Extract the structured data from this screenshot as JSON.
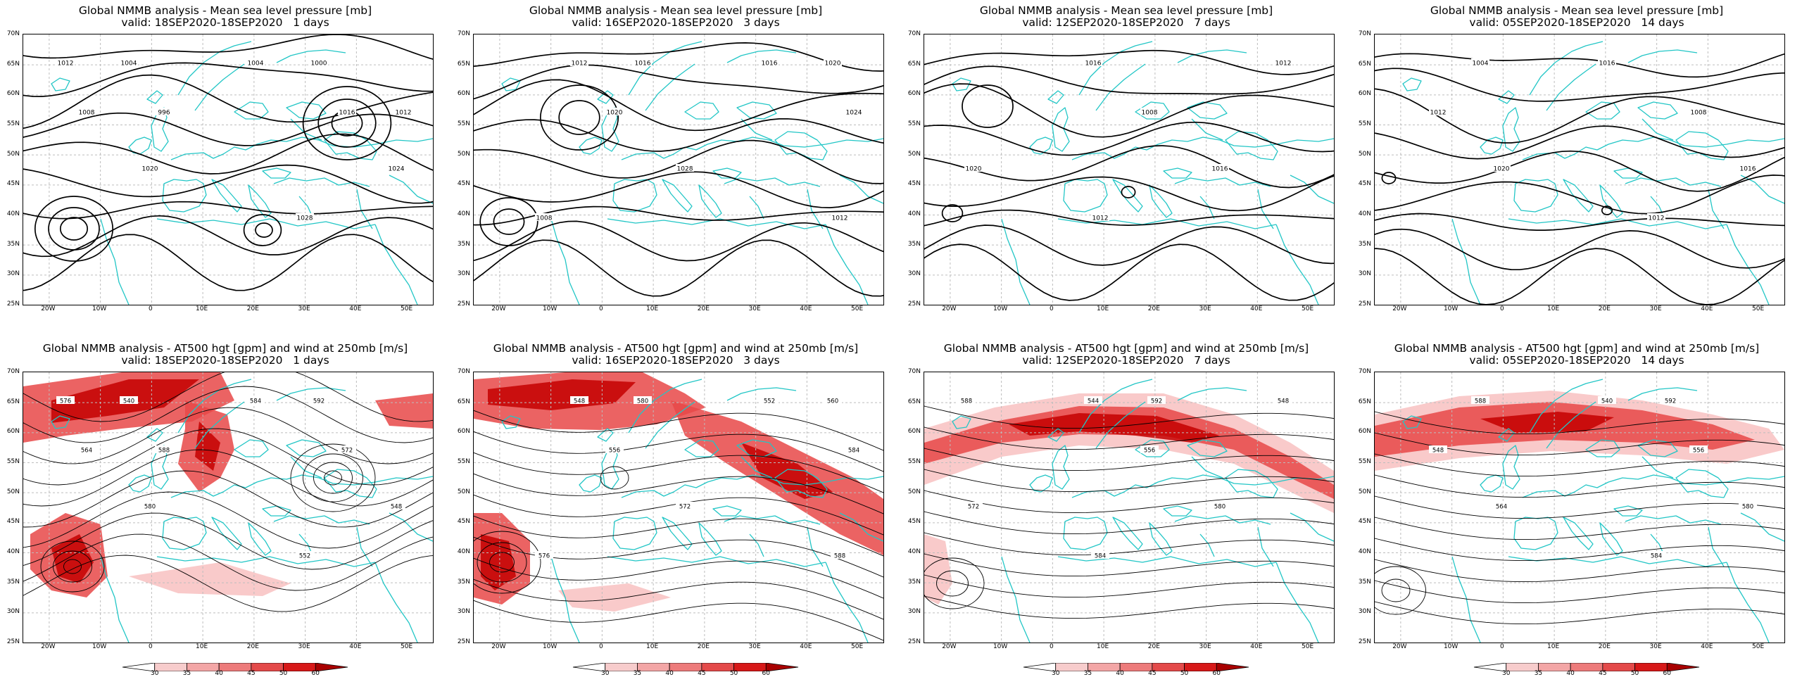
{
  "rows": [
    {
      "title_line1": "Global NMMB analysis - Mean sea level pressure [mb]",
      "kind": "mslp",
      "panels": [
        {
          "valid": "valid: 18SEP2020-18SEP2020   1 days",
          "contour_labels": [
            "1012",
            "1004",
            "1008",
            "1016",
            "1020",
            "1024",
            "1028",
            "1004",
            "1000",
            "996",
            "1012"
          ]
        },
        {
          "valid": "valid: 16SEP2020-18SEP2020   3 days",
          "contour_labels": [
            "1012",
            "1016",
            "1020",
            "1024",
            "1028",
            "1008",
            "1012",
            "1016",
            "1020"
          ]
        },
        {
          "valid": "valid: 12SEP2020-18SEP2020   7 days",
          "contour_labels": [
            "1016",
            "1012",
            "1008",
            "1020",
            "1016",
            "1012"
          ]
        },
        {
          "valid": "valid: 05SEP2020-18SEP2020   14 days",
          "contour_labels": [
            "1016",
            "1012",
            "1008",
            "1020",
            "1016",
            "1012",
            "1004"
          ]
        }
      ]
    },
    {
      "title_line1": "Global NMMB analysis - AT500 hgt [gpm] and wind at 250mb [m/s]",
      "kind": "z500",
      "panels": [
        {
          "valid": "valid: 18SEP2020-18SEP2020   1 days",
          "contour_labels": [
            "576",
            "584",
            "564",
            "572",
            "580",
            "548",
            "552",
            "540",
            "592",
            "588"
          ]
        },
        {
          "valid": "valid: 16SEP2020-18SEP2020   3 days",
          "contour_labels": [
            "548",
            "552",
            "556",
            "584",
            "572",
            "576",
            "588",
            "580",
            "560"
          ]
        },
        {
          "valid": "valid: 12SEP2020-18SEP2020   7 days",
          "contour_labels": [
            "544",
            "548",
            "556",
            "572",
            "580",
            "584",
            "588",
            "592"
          ]
        },
        {
          "valid": "valid: 05SEP2020-18SEP2020   14 days",
          "contour_labels": [
            "540",
            "548",
            "556",
            "564",
            "580",
            "584",
            "588",
            "592"
          ]
        }
      ]
    }
  ],
  "lat_ticks": [
    "70N",
    "65N",
    "60N",
    "55N",
    "50N",
    "45N",
    "40N",
    "35N",
    "30N",
    "25N"
  ],
  "lon_ticks": [
    "20W",
    "10W",
    "0",
    "10E",
    "20E",
    "30E",
    "40E",
    "50E"
  ],
  "colorbar": {
    "ticks": [
      "30",
      "35",
      "40",
      "45",
      "50",
      "60"
    ],
    "colors": [
      "#ffffff",
      "#f7cccc",
      "#f3a6a6",
      "#ed7b7b",
      "#e44a4a",
      "#d71818",
      "#a80000"
    ]
  },
  "colors": {
    "coast": "#22c6c6",
    "contour": "#000000",
    "grid": "#bdbdbd",
    "jet_core": "#c40000",
    "jet_mid": "#e84848",
    "jet_edge": "#f7b4b4"
  }
}
